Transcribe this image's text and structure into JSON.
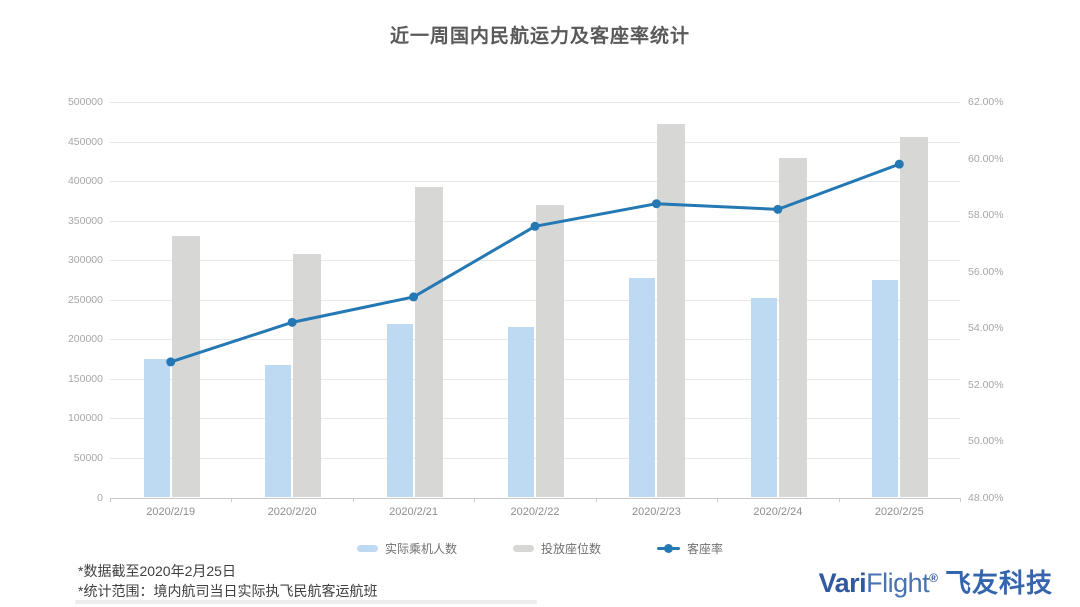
{
  "title": "近一周国内民航运力及客座率统计",
  "chart_data": {
    "type": "bar",
    "title": "近一周国内民航运力及客座率统计",
    "categories": [
      "2020/2/19",
      "2020/2/20",
      "2020/2/21",
      "2020/2/22",
      "2020/2/23",
      "2020/2/24",
      "2020/2/25"
    ],
    "series": [
      {
        "name": "实际乘机人数",
        "type": "bar",
        "axis": "left",
        "color": "#bddaf2",
        "values": [
          175000,
          168000,
          219000,
          216000,
          277000,
          252000,
          275000
        ]
      },
      {
        "name": "投放座位数",
        "type": "bar",
        "axis": "left",
        "color": "#d7d7d5",
        "values": [
          331000,
          308000,
          392000,
          370000,
          472000,
          429000,
          456000
        ]
      },
      {
        "name": "客座率",
        "type": "line",
        "axis": "right",
        "color": "#2478b4",
        "values": [
          52.8,
          54.2,
          55.1,
          57.6,
          58.4,
          58.2,
          59.8
        ]
      }
    ],
    "left_axis": {
      "min": 0,
      "max": 500000,
      "step": 50000,
      "ticks": [
        "0",
        "50000",
        "100000",
        "150000",
        "200000",
        "250000",
        "300000",
        "350000",
        "400000",
        "450000",
        "500000"
      ]
    },
    "right_axis": {
      "min": 48,
      "max": 62,
      "step": 2,
      "ticks": [
        "48.00%",
        "50.00%",
        "52.00%",
        "54.00%",
        "56.00%",
        "58.00%",
        "60.00%",
        "62.00%"
      ]
    },
    "grid": true,
    "legend_position": "bottom"
  },
  "footnotes": [
    "*数据截至2020年2月25日",
    "*统计范围：境内航司当日实际执飞民航客运航班"
  ],
  "logo": {
    "brand_bold": "Vari",
    "brand_light": "Flight",
    "mark": "®",
    "company": "飞友科技"
  },
  "colors": {
    "passengers_bar": "#bddaf2",
    "seats_bar": "#d7d7d5",
    "load_factor_line": "#2478b4",
    "gridline": "#e8e8e8",
    "axis_text": "#a6a6a6",
    "title_text": "#595959",
    "logo_blue": "#31599f"
  }
}
